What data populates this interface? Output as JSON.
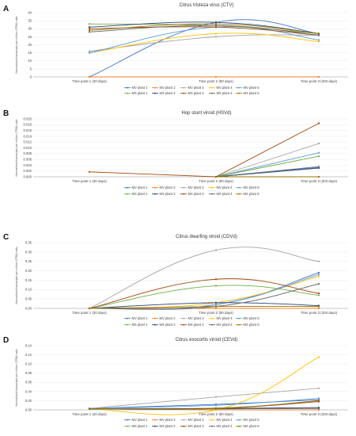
{
  "chart_data": [
    {
      "panel": "A",
      "type": "line",
      "title": "Citrus tristeza virus (CTV)",
      "ylabel": "Normalized transcripts per million (TPM) ratio",
      "categories": [
        "Time point 1 (30 days)",
        "Time point 2 (90 days)",
        "Time point 3 (203 days)"
      ],
      "ylim": [
        0,
        40
      ],
      "yticks": [
        0,
        5,
        10,
        15,
        20,
        25,
        30,
        35,
        40
      ],
      "y_decimals": 0,
      "smooth": true,
      "series": [
        {
          "name": "MV plant 1",
          "values": [
            0,
            34,
            27
          ]
        },
        {
          "name": "MV plant 2",
          "values": [
            0,
            0,
            0
          ]
        },
        {
          "name": "MV plant 3",
          "values": [
            16,
            25,
            26
          ]
        },
        {
          "name": "MV plant 4",
          "values": [
            15,
            27,
            22
          ]
        },
        {
          "name": "MV plant 5",
          "values": [
            15,
            31,
            23
          ]
        },
        {
          "name": "MX plant 1",
          "values": [
            33,
            32,
            27
          ]
        },
        {
          "name": "MX plant 2",
          "values": [
            31,
            34,
            27
          ]
        },
        {
          "name": "MX plant 3",
          "values": [
            30,
            31,
            26
          ]
        },
        {
          "name": "MX plant 4",
          "values": [
            28,
            32,
            26
          ]
        },
        {
          "name": "MX plant 5",
          "values": [
            29,
            33,
            27
          ]
        }
      ]
    },
    {
      "panel": "B",
      "type": "line",
      "title": "Hop stunt viroid (HSVd)",
      "ylabel": "Normalized transcripts per million (TPM) ratio",
      "categories": [
        "Time point 1 (30 days)",
        "Time point 2 (90 days)",
        "Time point 3 (203 days)"
      ],
      "ylim": [
        0,
        0.02
      ],
      "yticks": [
        0,
        0.002,
        0.004,
        0.006,
        0.008,
        0.01,
        0.012,
        0.014,
        0.016,
        0.018,
        0.02
      ],
      "y_decimals": 3,
      "smooth": false,
      "series": [
        {
          "name": "MV plant 1",
          "values": [
            null,
            0,
            0.0035
          ]
        },
        {
          "name": "MV plant 2",
          "values": [
            null,
            0,
            0
          ]
        },
        {
          "name": "MV plant 3",
          "values": [
            null,
            0,
            0.0115
          ]
        },
        {
          "name": "MV plant 4",
          "values": [
            null,
            0,
            0
          ]
        },
        {
          "name": "MV plant 5",
          "values": [
            null,
            0,
            0.0083
          ]
        },
        {
          "name": "MX plant 1",
          "values": [
            null,
            0,
            0.0071
          ]
        },
        {
          "name": "MX plant 2",
          "values": [
            null,
            0,
            0.003
          ]
        },
        {
          "name": "MX plant 3",
          "values": [
            0.0017,
            0,
            0.0185
          ]
        },
        {
          "name": "MX plant 4",
          "values": [
            null,
            0,
            0.0032
          ]
        },
        {
          "name": "MX plant 5",
          "values": [
            null,
            0,
            0
          ]
        }
      ]
    },
    {
      "panel": "C",
      "type": "line",
      "title": "Citrus dwarfing viroid (CDVd)",
      "ylabel": "Normalized transcripts per million (TPM) ratio",
      "categories": [
        "Time point 1 (30 days)",
        "Time point 2 (90 days)",
        "Time point 3 (203 days)"
      ],
      "ylim": [
        0,
        0.35
      ],
      "yticks": [
        0,
        0.05,
        0.1,
        0.15,
        0.2,
        0.25,
        0.3,
        0.35
      ],
      "y_decimals": 2,
      "smooth": true,
      "series": [
        {
          "name": "MV plant 1",
          "values": [
            0,
            0.02,
            0.19
          ]
        },
        {
          "name": "MV plant 2",
          "values": [
            0,
            0,
            0
          ]
        },
        {
          "name": "MV plant 3",
          "values": [
            0,
            0.31,
            0.25
          ]
        },
        {
          "name": "MV plant 4",
          "values": [
            0,
            0.03,
            0.17
          ]
        },
        {
          "name": "MV plant 5",
          "values": [
            0,
            0.02,
            0.18
          ]
        },
        {
          "name": "MX plant 1",
          "values": [
            0,
            0.12,
            0.07
          ]
        },
        {
          "name": "MX plant 2",
          "values": [
            0,
            0.03,
            0.015
          ]
        },
        {
          "name": "MX plant 3",
          "values": [
            0,
            0.155,
            0.08
          ]
        },
        {
          "name": "MX plant 4",
          "values": [
            0,
            0.01,
            0.13
          ]
        },
        {
          "name": "MX plant 5",
          "values": [
            0,
            0.01,
            0.01
          ]
        }
      ]
    },
    {
      "panel": "D",
      "type": "line",
      "title": "Citrus exocortis viroid (CEVd)",
      "ylabel": "Normalized transcripts per million (TPM) ratio",
      "categories": [
        "Time point 1 (30 days)",
        "Time point 2 (90 days)",
        "Time point 3 (203 days)"
      ],
      "ylim": [
        0,
        0.14
      ],
      "yticks": [
        0,
        0.02,
        0.04,
        0.06,
        0.08,
        0.1,
        0.12,
        0.14
      ],
      "y_decimals": 2,
      "smooth": true,
      "series": [
        {
          "name": "MV plant 1",
          "values": [
            0.003,
            0.012,
            0.022
          ]
        },
        {
          "name": "MV plant 2",
          "values": [
            0.002,
            0,
            0
          ]
        },
        {
          "name": "MV plant 3",
          "values": [
            0.003,
            0.028,
            0.047
          ]
        },
        {
          "name": "MV plant 4",
          "values": [
            0.002,
            0,
            0.115
          ]
        },
        {
          "name": "MV plant 5",
          "values": [
            0.003,
            0.01,
            0.025
          ]
        },
        {
          "name": "MX plant 1",
          "values": [
            0.002,
            0.004,
            0.018
          ]
        },
        {
          "name": "MX plant 2",
          "values": [
            0.002,
            0.003,
            0.005
          ]
        },
        {
          "name": "MX plant 3",
          "values": [
            0.002,
            0.003,
            0.018
          ]
        },
        {
          "name": "MX plant 4",
          "values": [
            0.002,
            0.002,
            0.003
          ]
        },
        {
          "name": "MX plant 5",
          "values": [
            0.002,
            0.003,
            0.02
          ]
        }
      ]
    }
  ],
  "series_colors": [
    "#4472c4",
    "#ed7d31",
    "#a5a5a5",
    "#ffc000",
    "#5b9bd5",
    "#70ad47",
    "#264478",
    "#9e480e",
    "#636363",
    "#997300"
  ]
}
